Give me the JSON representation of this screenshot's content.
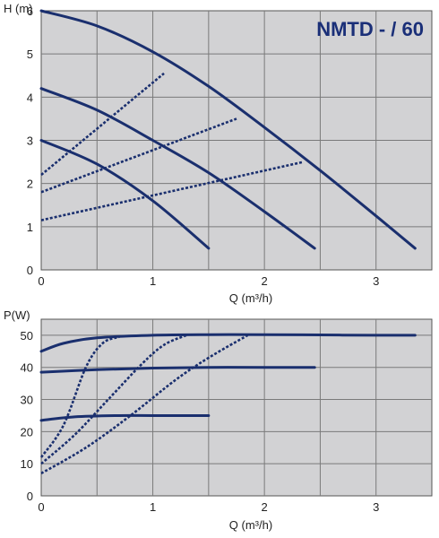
{
  "chart_data": [
    {
      "type": "line",
      "title": "NMTD - / 60",
      "xlabel": "Q (m³/h)",
      "ylabel": "H (m)",
      "xlim": [
        0,
        3.5
      ],
      "ylim": [
        0,
        6
      ],
      "x_ticks": [
        "0",
        "1",
        "2",
        "3"
      ],
      "y_ticks": [
        "0",
        "1",
        "2",
        "3",
        "4",
        "5",
        "6"
      ],
      "grid": true,
      "series": [
        {
          "x": [
            0,
            0.5,
            1.0,
            1.5,
            2.0,
            2.5,
            3.0,
            3.35
          ],
          "values": [
            6.0,
            5.65,
            5.05,
            4.25,
            3.3,
            2.3,
            1.25,
            0.5
          ]
        },
        {
          "x": [
            0,
            0.5,
            1.0,
            1.5,
            2.0,
            2.45
          ],
          "values": [
            4.2,
            3.7,
            3.0,
            2.25,
            1.35,
            0.5
          ]
        },
        {
          "x": [
            0,
            0.5,
            1.0,
            1.5
          ],
          "values": [
            3.0,
            2.45,
            1.6,
            0.5
          ]
        },
        {
          "x": [
            0,
            1.1
          ],
          "values": [
            2.2,
            4.55
          ]
        },
        {
          "x": [
            0,
            1.75
          ],
          "values": [
            1.8,
            3.5
          ]
        },
        {
          "x": [
            0,
            2.35
          ],
          "values": [
            1.15,
            2.5
          ]
        }
      ]
    },
    {
      "type": "line",
      "xlabel": "Q (m³/h)",
      "ylabel": "P(W)",
      "xlim": [
        0,
        3.5
      ],
      "ylim": [
        0,
        55
      ],
      "x_ticks": [
        "0",
        "1",
        "2",
        "3"
      ],
      "y_ticks": [
        "0",
        "10",
        "20",
        "30",
        "40",
        "50"
      ],
      "grid": true,
      "series": [
        {
          "x": [
            0,
            0.2,
            0.5,
            1.0,
            1.5,
            2.0,
            2.5,
            3.0,
            3.35
          ],
          "values": [
            45,
            47.5,
            49.2,
            50.0,
            50.2,
            50.2,
            50.1,
            50.0,
            50.0
          ]
        },
        {
          "x": [
            0,
            0.5,
            1.0,
            1.5,
            2.0,
            2.45
          ],
          "values": [
            38.5,
            39.3,
            39.8,
            40.0,
            40.0,
            40.0
          ]
        },
        {
          "x": [
            0,
            0.3,
            0.7,
            1.0,
            1.5
          ],
          "values": [
            23.5,
            24.6,
            25.0,
            25.0,
            25.0
          ]
        },
        {
          "x": [
            0,
            0.2,
            0.4,
            0.55,
            0.7
          ],
          "values": [
            12,
            22,
            40,
            47.5,
            49.5
          ]
        },
        {
          "x": [
            0,
            0.3,
            0.6,
            0.9,
            1.1,
            1.3
          ],
          "values": [
            10,
            19,
            30,
            41,
            47,
            50
          ]
        },
        {
          "x": [
            0,
            0.4,
            0.8,
            1.2,
            1.5,
            1.85
          ],
          "values": [
            7,
            15,
            25,
            36,
            43,
            50
          ]
        }
      ]
    }
  ],
  "top_chart": {
    "title": "NMTD - / 60",
    "ylabel": "H (m)",
    "xlabel": "Q (m³/h)"
  },
  "bottom_chart": {
    "ylabel": "P(W)",
    "xlabel": "Q (m³/h)"
  }
}
